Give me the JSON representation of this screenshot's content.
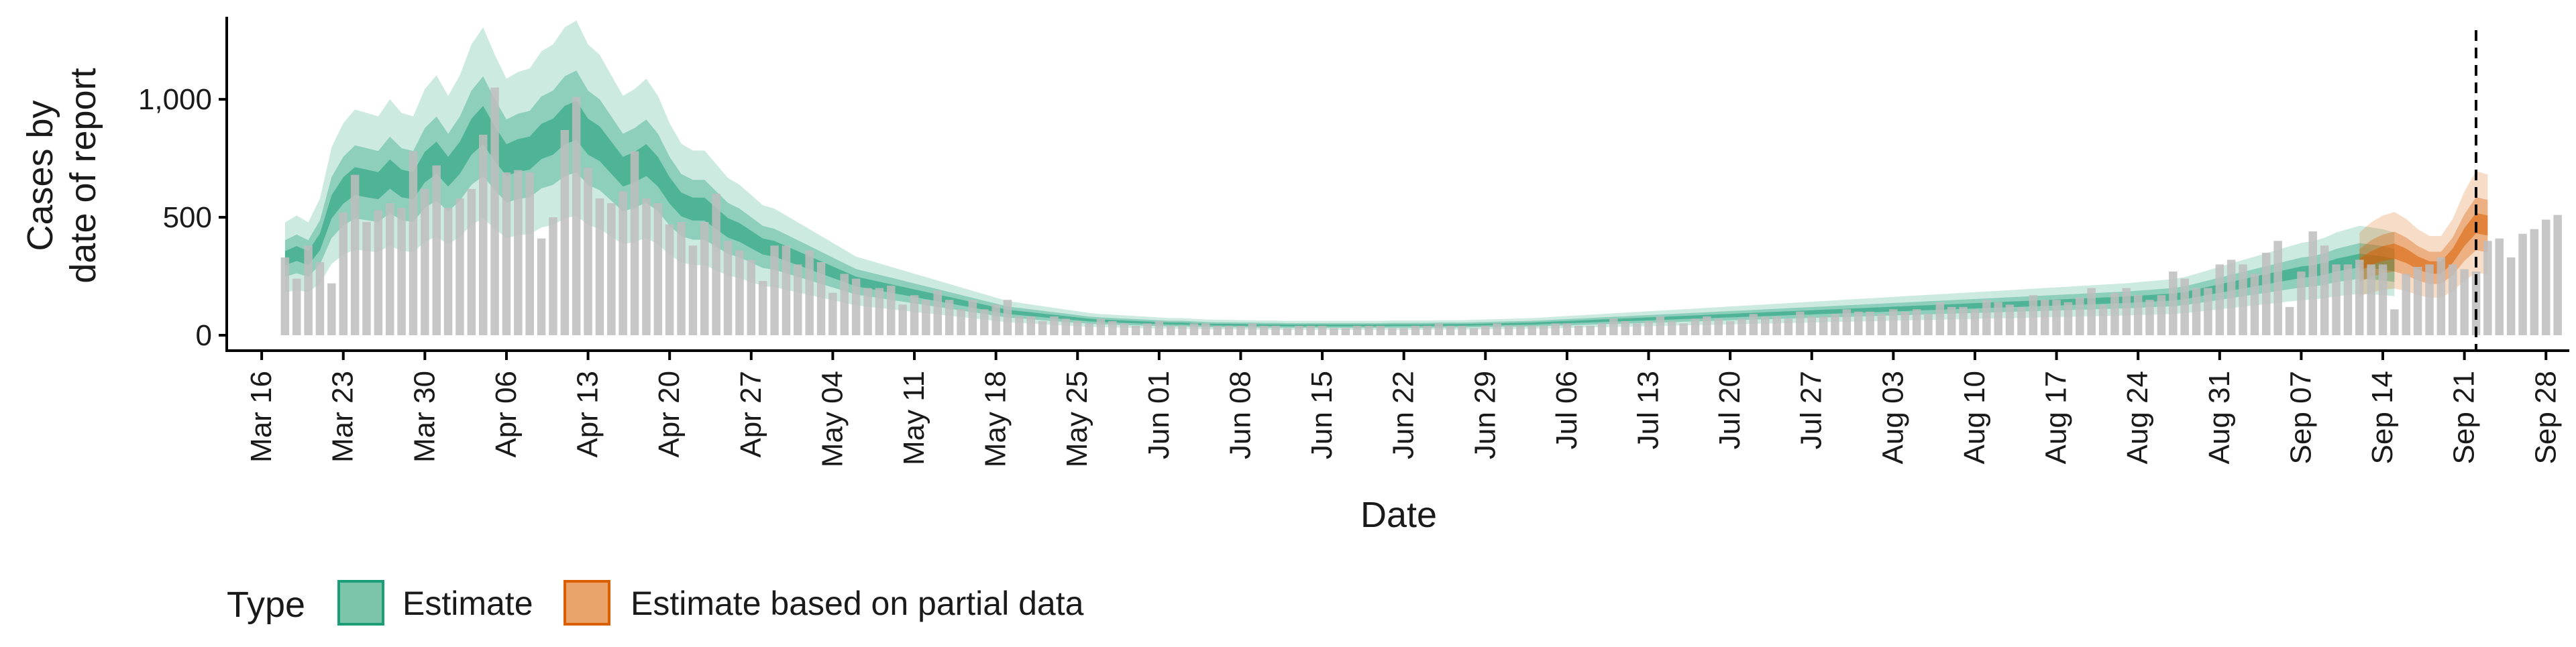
{
  "chart_data": {
    "type": "bar",
    "title": "",
    "xlabel": "Date",
    "ylabel_lines": [
      "Cases by",
      "date of report"
    ],
    "ylim": [
      0,
      1350
    ],
    "y_ticks": [
      0,
      500,
      1000
    ],
    "y_tick_labels": [
      "0",
      "500",
      "1,000"
    ],
    "x_range": [
      "2020-03-13",
      "2020-09-30"
    ],
    "x_tick_dates": [
      "2020-03-16",
      "2020-03-23",
      "2020-03-30",
      "2020-04-06",
      "2020-04-13",
      "2020-04-20",
      "2020-04-27",
      "2020-05-04",
      "2020-05-11",
      "2020-05-18",
      "2020-05-25",
      "2020-06-01",
      "2020-06-08",
      "2020-06-15",
      "2020-06-22",
      "2020-06-29",
      "2020-07-06",
      "2020-07-13",
      "2020-07-20",
      "2020-07-27",
      "2020-08-03",
      "2020-08-10",
      "2020-08-17",
      "2020-08-24",
      "2020-08-31",
      "2020-09-07",
      "2020-09-14",
      "2020-09-21",
      "2020-09-28"
    ],
    "x_tick_labels": [
      "Mar 16",
      "Mar 23",
      "Mar 30",
      "Apr 06",
      "Apr 13",
      "Apr 20",
      "Apr 27",
      "May 04",
      "May 11",
      "May 18",
      "May 25",
      "Jun 01",
      "Jun 08",
      "Jun 15",
      "Jun 22",
      "Jun 29",
      "Jul 06",
      "Jul 13",
      "Jul 20",
      "Jul 27",
      "Aug 03",
      "Aug 10",
      "Aug 17",
      "Aug 24",
      "Aug 31",
      "Sep 07",
      "Sep 14",
      "Sep 21",
      "Sep 28"
    ],
    "report_date": "2020-09-22",
    "grid": false,
    "legend_position": "bottom-left",
    "legend": {
      "title": "Type",
      "entries": [
        {
          "label": "Estimate",
          "fill": "#7cc5ab",
          "stroke": "#1b9e77"
        },
        {
          "label": "Estimate based on partial data",
          "fill": "#e9a46c",
          "stroke": "#d95f02"
        }
      ]
    },
    "colors": {
      "bars": "#bdbdbd",
      "estimate": "#1b9e77",
      "partial": "#d95f02",
      "axis": "#000000",
      "report_line": "#000000"
    },
    "observed_cases": {
      "start_date": "2020-03-18",
      "values": [
        330,
        240,
        380,
        310,
        220,
        520,
        680,
        480,
        530,
        560,
        540,
        780,
        620,
        720,
        540,
        580,
        620,
        850,
        1050,
        690,
        700,
        690,
        410,
        500,
        870,
        1010,
        710,
        580,
        560,
        610,
        780,
        580,
        560,
        470,
        480,
        380,
        480,
        600,
        400,
        360,
        320,
        230,
        380,
        380,
        300,
        360,
        310,
        180,
        260,
        240,
        200,
        200,
        210,
        130,
        170,
        150,
        190,
        150,
        110,
        150,
        110,
        130,
        150,
        80,
        80,
        60,
        80,
        70,
        60,
        50,
        70,
        60,
        50,
        40,
        50,
        60,
        40,
        40,
        50,
        50,
        40,
        40,
        40,
        50,
        40,
        40,
        30,
        40,
        40,
        40,
        30,
        30,
        40,
        40,
        40,
        30,
        30,
        40,
        40,
        50,
        40,
        40,
        30,
        40,
        50,
        40,
        40,
        40,
        40,
        50,
        50,
        40,
        40,
        50,
        70,
        60,
        50,
        60,
        80,
        60,
        50,
        70,
        80,
        70,
        60,
        70,
        90,
        80,
        80,
        70,
        100,
        80,
        80,
        90,
        110,
        100,
        100,
        90,
        110,
        100,
        110,
        90,
        140,
        120,
        120,
        110,
        150,
        140,
        130,
        120,
        170,
        150,
        150,
        140,
        160,
        200,
        130,
        180,
        200,
        170,
        150,
        170,
        270,
        240,
        200,
        200,
        300,
        320,
        300,
        260,
        350,
        400,
        120,
        270,
        440,
        380,
        300,
        300,
        320,
        300,
        300,
        110,
        260,
        290,
        300,
        330,
        300,
        280,
        270,
        400,
        410,
        330,
        430,
        450,
        490,
        510
      ]
    },
    "estimate_band": {
      "start_date": "2020-03-18",
      "values": [
        330,
        350,
        330,
        400,
        550,
        620,
        660,
        650,
        640,
        690,
        650,
        640,
        720,
        760,
        700,
        760,
        850,
        900,
        820,
        750,
        770,
        780,
        830,
        850,
        900,
        920,
        850,
        820,
        760,
        700,
        720,
        750,
        700,
        620,
        560,
        540,
        540,
        500,
        460,
        440,
        410,
        380,
        370,
        350,
        330,
        310,
        290,
        270,
        250,
        230,
        220,
        210,
        200,
        190,
        180,
        170,
        160,
        150,
        140,
        130,
        120,
        110,
        100,
        95,
        90,
        85,
        80,
        75,
        70,
        65,
        62,
        60,
        58,
        56,
        54,
        52,
        50,
        50,
        48,
        46,
        45,
        45,
        44,
        44,
        43,
        43,
        42,
        42,
        42,
        42,
        42,
        42,
        42,
        42,
        42,
        43,
        43,
        43,
        43,
        44,
        44,
        44,
        45,
        46,
        47,
        48,
        49,
        50,
        52,
        54,
        56,
        58,
        60,
        62,
        64,
        66,
        68,
        70,
        72,
        74,
        76,
        78,
        80,
        82,
        84,
        86,
        88,
        90,
        92,
        94,
        96,
        98,
        100,
        102,
        104,
        106,
        108,
        110,
        112,
        114,
        116,
        118,
        120,
        122,
        124,
        126,
        128,
        130,
        132,
        134,
        136,
        138,
        140,
        142,
        144,
        146,
        148,
        150,
        152,
        155,
        158,
        161,
        164,
        170,
        180,
        190,
        200,
        210,
        220,
        230,
        240,
        250,
        260,
        270,
        275,
        285,
        300,
        310,
        320,
        315,
        310,
        300
      ]
    },
    "partial_band": {
      "start_date": "2020-09-12",
      "values": [
        300,
        330,
        350,
        360,
        340,
        310,
        290,
        290,
        340,
        420,
        480,
        470
      ]
    }
  }
}
